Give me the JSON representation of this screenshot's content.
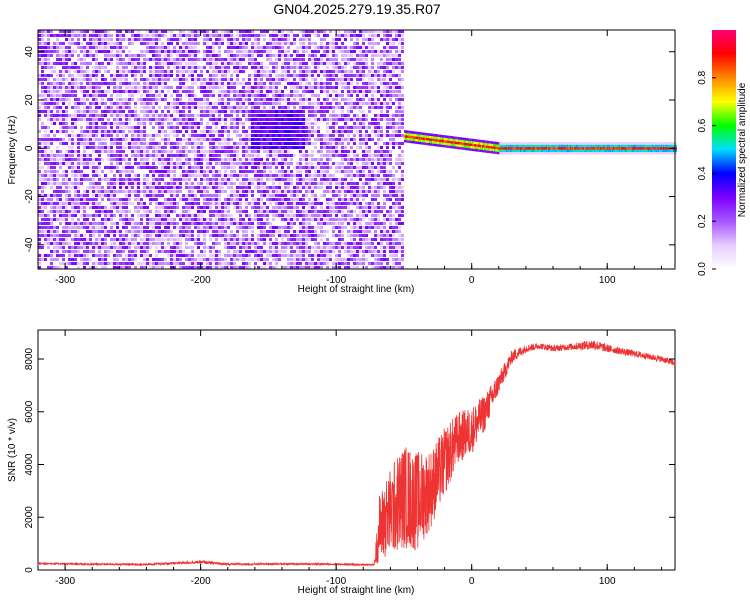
{
  "title": "GN04.2025.279.19.35.R07",
  "colors": {
    "snr_line": "#ee3333",
    "text": "#000000",
    "background": "#ffffff"
  },
  "chart_data": [
    {
      "type": "heatmap",
      "xlabel": "Height of straight line (km)",
      "ylabel": "Frequency (Hz)",
      "xlim": [
        -320,
        150
      ],
      "ylim": [
        -50,
        49
      ],
      "xticks": [
        -300,
        -200,
        -100,
        0,
        100
      ],
      "yticks": [
        -40,
        -20,
        0,
        20,
        40
      ],
      "colorbar": {
        "label": "Normalized spectral amplitude",
        "range": [
          0,
          1
        ],
        "ticks": [
          0.0,
          0.2,
          0.4,
          0.6,
          0.8
        ],
        "colormap": [
          "#ffffff",
          "#e6ccff",
          "#a855ff",
          "#7a00ff",
          "#0000ff",
          "#00ddff",
          "#00ff00",
          "#ffff00",
          "#ff8800",
          "#ff0000",
          "#ff0077"
        ]
      },
      "regions": [
        {
          "x_range": [
            -320,
            -50
          ],
          "description_level": 0.15,
          "kind": "broadband-noise",
          "freq_range": [
            -50,
            49
          ]
        },
        {
          "x_range": [
            -165,
            -125
          ],
          "center_freq": 8,
          "amplitude": 0.3,
          "kind": "weak-blob"
        },
        {
          "x_range": [
            -50,
            150
          ],
          "kind": "narrow-line",
          "center_freq_start": 5,
          "center_freq_end": 0,
          "amplitude": 0.95
        }
      ]
    },
    {
      "type": "line",
      "xlabel": "Height of straight line (km)",
      "ylabel": "SNR (10 * v/v)",
      "xlim": [
        -320,
        150
      ],
      "ylim": [
        0,
        9100
      ],
      "xticks": [
        -300,
        -200,
        -100,
        0,
        100
      ],
      "yticks": [
        0,
        2000,
        4000,
        6000,
        8000
      ],
      "series": [
        {
          "x": [
            -320,
            -280,
            -240,
            -210,
            -200,
            -180,
            -140,
            -100,
            -80,
            -72,
            -68,
            -60,
            -50,
            -40,
            -30,
            -20,
            -10,
            0,
            10,
            20,
            30,
            40,
            50,
            60,
            70,
            80,
            90,
            100,
            110,
            120,
            130,
            140,
            150
          ],
          "y": [
            250,
            220,
            210,
            280,
            300,
            220,
            230,
            220,
            200,
            200,
            1600,
            2200,
            2800,
            2600,
            3100,
            4100,
            5000,
            5300,
            6000,
            7100,
            8100,
            8400,
            8500,
            8400,
            8450,
            8500,
            8550,
            8400,
            8300,
            8200,
            8100,
            8000,
            7850
          ],
          "noise": [
            30,
            30,
            30,
            50,
            60,
            40,
            30,
            30,
            30,
            30,
            1300,
            1700,
            2000,
            1900,
            1500,
            1300,
            1000,
            900,
            700,
            400,
            250,
            150,
            120,
            120,
            120,
            150,
            200,
            150,
            130,
            130,
            120,
            120,
            120
          ]
        }
      ]
    }
  ]
}
